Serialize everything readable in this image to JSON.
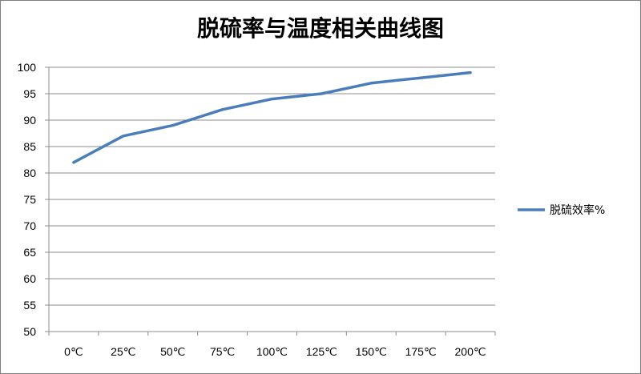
{
  "chart_data": {
    "type": "line",
    "title": "脱硫率与温度相关曲线图",
    "xlabel": "",
    "ylabel": "",
    "categories": [
      "0℃",
      "25℃",
      "50℃",
      "75℃",
      "100℃",
      "125℃",
      "150℃",
      "175℃",
      "200℃"
    ],
    "ylim": [
      50,
      100
    ],
    "yticks": [
      "50",
      "55",
      "60",
      "65",
      "70",
      "75",
      "80",
      "85",
      "90",
      "95",
      "100"
    ],
    "series": [
      {
        "name": "脱硫效率%",
        "values": [
          82,
          87,
          89,
          92,
          94,
          95,
          97,
          98,
          99
        ],
        "color": "#4a7ebb"
      }
    ],
    "grid": "horizontal",
    "legend": "right"
  }
}
